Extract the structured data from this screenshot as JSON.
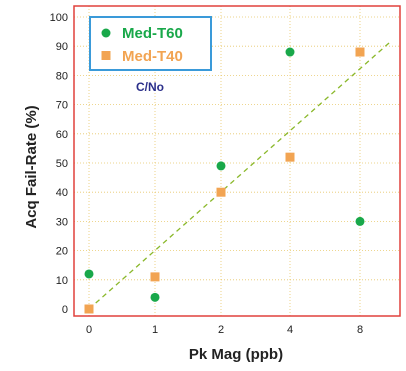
{
  "chart_data": {
    "type": "scatter",
    "xlabel": "Pk Mag (ppb)",
    "ylabel": "Acq Fail-Rate (%)",
    "categories": [
      "0",
      "1",
      "2",
      "4",
      "8"
    ],
    "y_ticks": [
      "0",
      "10",
      "20",
      "30",
      "40",
      "50",
      "60",
      "70",
      "80",
      "90",
      "100"
    ],
    "ylim": [
      0,
      100
    ],
    "grid": true,
    "legend_position": "top-left",
    "annotation": "C/No",
    "series": [
      {
        "name": "Med-T60",
        "marker": "circle",
        "color": "#19a84a",
        "values": [
          12,
          4,
          49,
          88,
          30
        ]
      },
      {
        "name": "Med-T40",
        "marker": "square",
        "color": "#f2a452",
        "values": [
          0,
          11,
          40,
          52,
          88
        ]
      }
    ],
    "trendline": {
      "style": "dashed",
      "color": "#8ab82a",
      "from": [
        0,
        0
      ],
      "to": [
        8,
        92
      ]
    },
    "colors": {
      "frame": "#e0403c",
      "grid": "#e8c86a",
      "legend_border": "#3a9ad9"
    }
  }
}
